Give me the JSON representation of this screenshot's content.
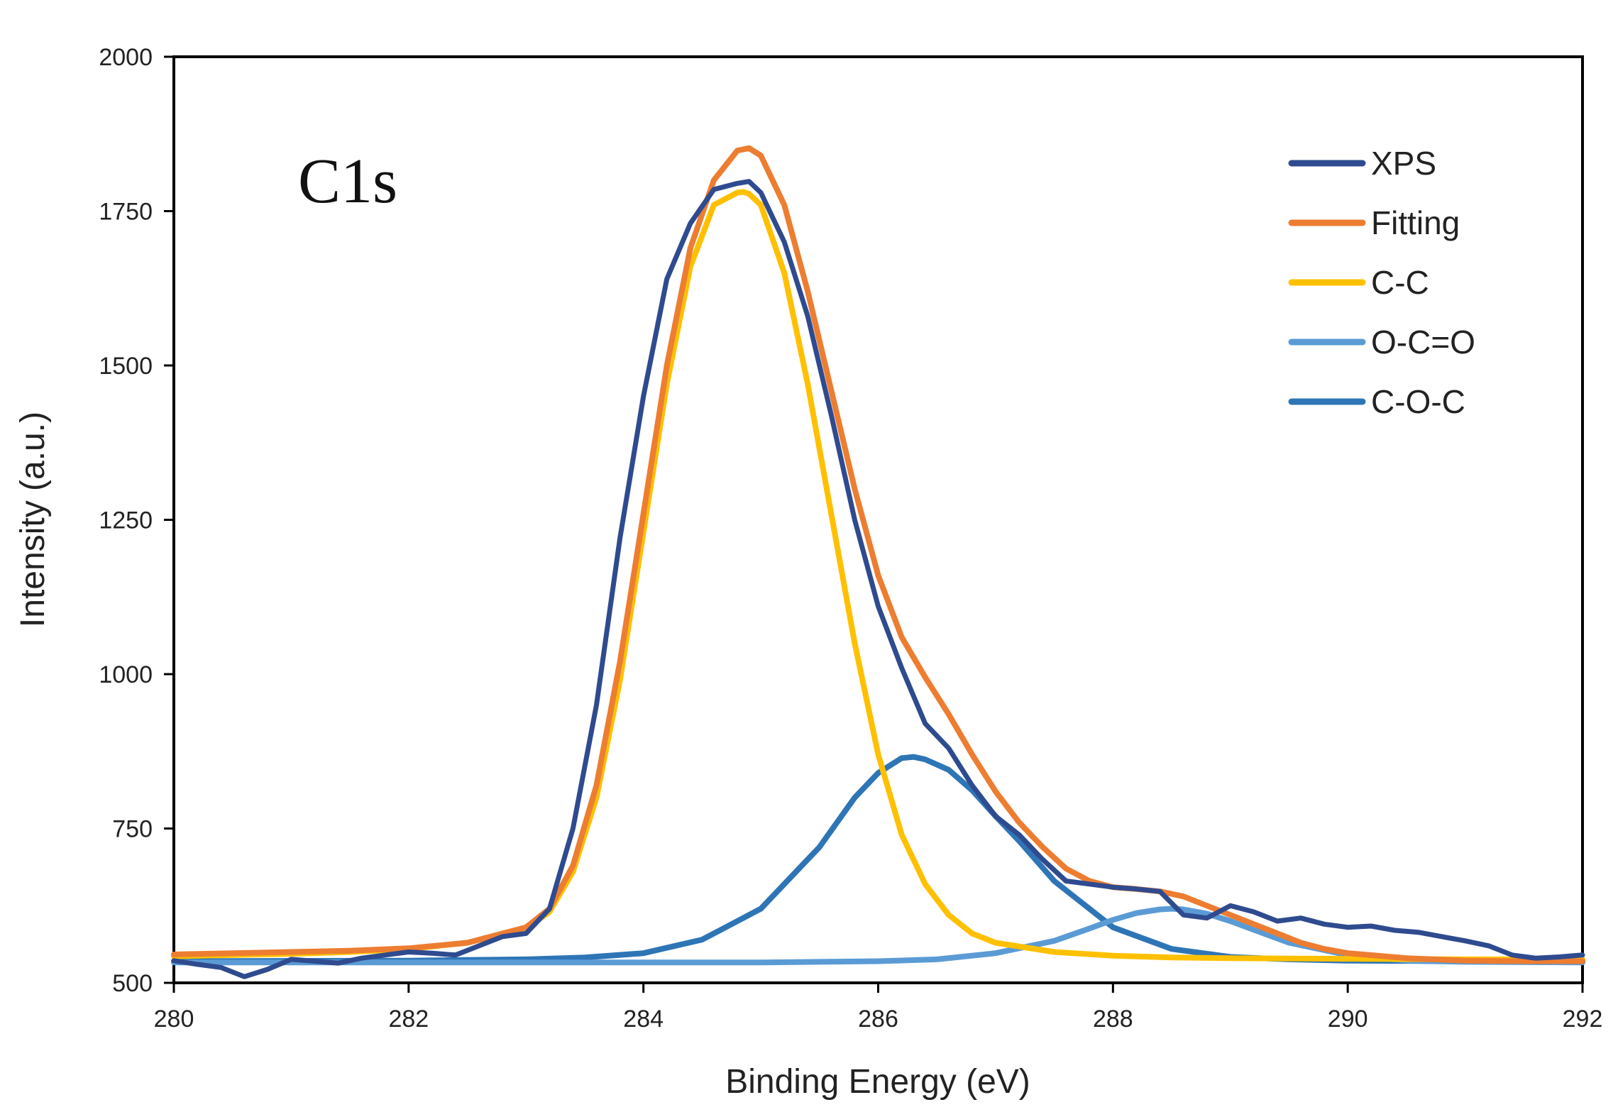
{
  "chart_data": {
    "type": "line",
    "title": "",
    "annotation": "C1s",
    "xlabel": "Binding Energy (eV)",
    "ylabel": "Intensity (a.u.)",
    "xlim": [
      280,
      292
    ],
    "ylim": [
      500,
      2000
    ],
    "x_ticks": [
      "280",
      "282",
      "284",
      "286",
      "288",
      "290",
      "292"
    ],
    "y_ticks": [
      "500",
      "750",
      "1000",
      "1250",
      "1500",
      "1750",
      "2000"
    ],
    "grid": false,
    "legend_position": "top-right",
    "series": [
      {
        "name": "XPS",
        "color": "#2f4b8f",
        "x": [
          280.0,
          280.2,
          280.4,
          280.6,
          280.8,
          281.0,
          281.2,
          281.4,
          281.6,
          281.8,
          282.0,
          282.2,
          282.4,
          282.6,
          282.8,
          283.0,
          283.2,
          283.4,
          283.6,
          283.8,
          284.0,
          284.2,
          284.4,
          284.6,
          284.8,
          284.9,
          285.0,
          285.2,
          285.4,
          285.6,
          285.8,
          286.0,
          286.2,
          286.4,
          286.6,
          286.8,
          287.0,
          287.2,
          287.4,
          287.6,
          287.8,
          288.0,
          288.2,
          288.4,
          288.6,
          288.8,
          289.0,
          289.2,
          289.4,
          289.6,
          289.8,
          290.0,
          290.2,
          290.4,
          290.6,
          290.8,
          291.0,
          291.2,
          291.4,
          291.6,
          291.8,
          292.0
        ],
        "values": [
          536,
          530,
          525,
          510,
          522,
          538,
          535,
          532,
          540,
          545,
          550,
          548,
          545,
          560,
          575,
          580,
          620,
          750,
          950,
          1220,
          1450,
          1640,
          1730,
          1785,
          1795,
          1798,
          1780,
          1700,
          1580,
          1420,
          1250,
          1110,
          1010,
          920,
          880,
          820,
          770,
          740,
          700,
          665,
          660,
          655,
          652,
          648,
          610,
          605,
          625,
          615,
          600,
          605,
          595,
          590,
          592,
          585,
          582,
          575,
          568,
          560,
          545,
          540,
          542,
          545
        ]
      },
      {
        "name": "Fitting",
        "color": "#ed7d31",
        "x": [
          280.0,
          280.5,
          281.0,
          281.5,
          282.0,
          282.5,
          283.0,
          283.2,
          283.4,
          283.6,
          283.8,
          284.0,
          284.2,
          284.4,
          284.6,
          284.8,
          284.9,
          285.0,
          285.2,
          285.4,
          285.6,
          285.8,
          286.0,
          286.2,
          286.4,
          286.6,
          286.8,
          287.0,
          287.2,
          287.4,
          287.6,
          287.8,
          288.0,
          288.2,
          288.4,
          288.6,
          288.8,
          289.0,
          289.2,
          289.4,
          289.6,
          289.8,
          290.0,
          290.5,
          291.0,
          291.5,
          292.0
        ],
        "values": [
          546,
          548,
          550,
          552,
          556,
          565,
          590,
          620,
          690,
          820,
          1020,
          1260,
          1500,
          1690,
          1800,
          1848,
          1852,
          1840,
          1760,
          1620,
          1460,
          1300,
          1160,
          1060,
          995,
          935,
          870,
          810,
          760,
          720,
          685,
          665,
          655,
          652,
          648,
          640,
          625,
          610,
          595,
          580,
          565,
          555,
          548,
          540,
          536,
          535,
          535
        ]
      },
      {
        "name": "C-C",
        "color": "#ffc000",
        "x": [
          280.0,
          280.5,
          281.0,
          281.5,
          282.0,
          282.5,
          283.0,
          283.2,
          283.4,
          283.6,
          283.8,
          284.0,
          284.2,
          284.4,
          284.6,
          284.8,
          284.85,
          284.9,
          285.0,
          285.2,
          285.4,
          285.6,
          285.8,
          286.0,
          286.2,
          286.4,
          286.6,
          286.8,
          287.0,
          287.5,
          288.0,
          288.5,
          289.0,
          290.0,
          291.0,
          292.0
        ],
        "values": [
          543,
          545,
          547,
          550,
          555,
          565,
          588,
          615,
          680,
          800,
          990,
          1230,
          1470,
          1660,
          1760,
          1780,
          1781,
          1778,
          1760,
          1650,
          1470,
          1260,
          1050,
          870,
          740,
          660,
          610,
          580,
          565,
          550,
          544,
          541,
          540,
          539,
          538,
          538
        ]
      },
      {
        "name": "O-C=O",
        "color": "#5b9bd5",
        "x": [
          280.0,
          282.0,
          284.0,
          285.0,
          286.0,
          286.5,
          287.0,
          287.5,
          287.8,
          288.0,
          288.2,
          288.4,
          288.5,
          288.6,
          288.8,
          289.0,
          289.2,
          289.5,
          290.0,
          290.5,
          291.0,
          292.0
        ],
        "values": [
          533,
          533,
          533,
          533,
          535,
          538,
          548,
          568,
          588,
          602,
          613,
          619,
          620,
          619,
          612,
          600,
          586,
          565,
          545,
          536,
          534,
          533
        ]
      },
      {
        "name": "C-O-C",
        "color": "#2e75b6",
        "x": [
          280.0,
          282.0,
          283.0,
          283.5,
          284.0,
          284.5,
          285.0,
          285.5,
          285.8,
          286.0,
          286.2,
          286.3,
          286.4,
          286.6,
          286.8,
          287.0,
          287.2,
          287.5,
          288.0,
          288.5,
          289.0,
          289.5,
          290.0,
          291.0,
          292.0
        ],
        "values": [
          535,
          536,
          538,
          541,
          548,
          570,
          620,
          720,
          800,
          840,
          864,
          866,
          862,
          845,
          812,
          770,
          730,
          665,
          590,
          555,
          542,
          538,
          536,
          535,
          535
        ]
      }
    ]
  }
}
